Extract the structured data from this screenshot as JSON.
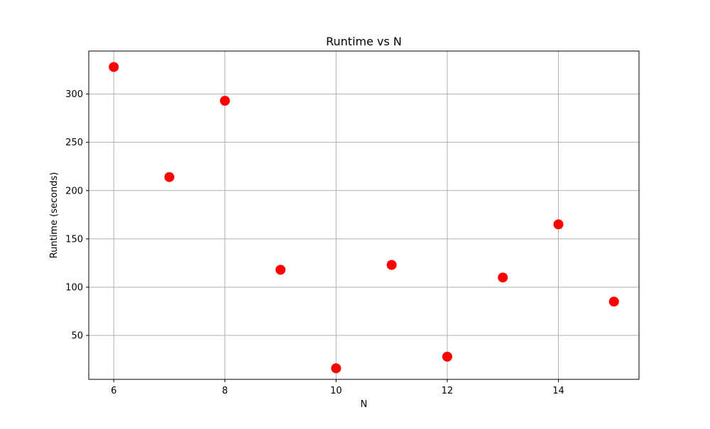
{
  "chart_data": {
    "type": "scatter",
    "title": "Runtime vs N",
    "xlabel": "N",
    "ylabel": "Runtime (seconds)",
    "xlim": [
      5.55,
      15.45
    ],
    "ylim": [
      4.5,
      344.5
    ],
    "xticks": [
      6,
      8,
      10,
      12,
      14
    ],
    "yticks": [
      50,
      100,
      150,
      200,
      250,
      300
    ],
    "grid": true,
    "marker_color": "#ff0000",
    "x": [
      6,
      7,
      8,
      9,
      10,
      11,
      12,
      13,
      14,
      15
    ],
    "y": [
      328,
      214,
      293,
      118,
      16,
      123,
      28,
      110,
      165,
      85
    ]
  }
}
